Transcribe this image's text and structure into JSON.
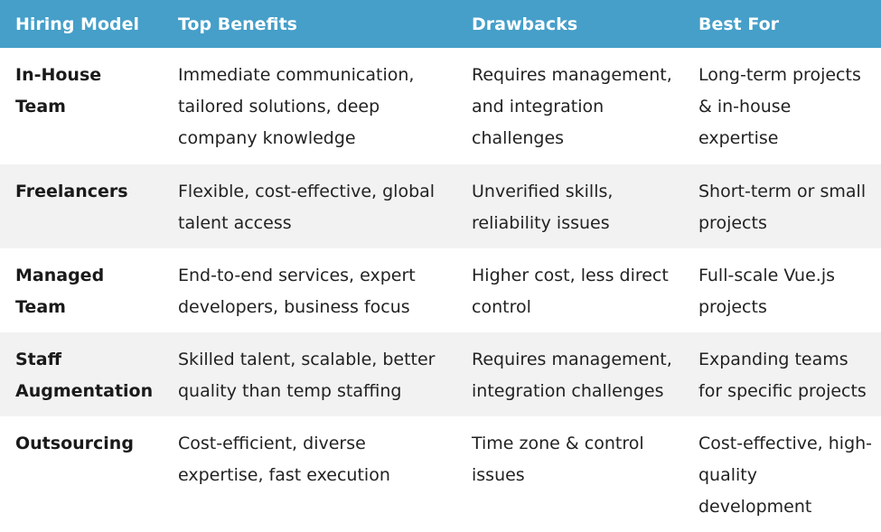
{
  "table": {
    "headers": [
      "Hiring Model",
      "Top Benefits",
      "Drawbacks",
      "Best For"
    ],
    "rows": [
      {
        "model": "In-House Team",
        "benefits": "Immediate communication, tailored solutions, deep company knowledge",
        "drawbacks": "Requires management, and integration challenges",
        "best_for": "Long-term projects & in-house expertise"
      },
      {
        "model": "Freelancers",
        "benefits": "Flexible, cost-effective, global talent access",
        "drawbacks": "Unverified skills, reliability issues",
        "best_for": "Short-term or small projects"
      },
      {
        "model": "Managed Team",
        "benefits": "End-to-end services, expert developers, business focus",
        "drawbacks": "Higher cost, less direct control",
        "best_for": "Full-scale Vue.js projects"
      },
      {
        "model": "Staff Augmentation",
        "benefits": "Skilled talent, scalable, better quality than temp staffing",
        "drawbacks": "Requires management, integration challenges",
        "best_for": "Expanding teams for specific projects"
      },
      {
        "model": "Outsourcing",
        "benefits": "Cost-efficient, diverse expertise, fast execution",
        "drawbacks": "Time zone & control issues",
        "best_for": "Cost-effective, high-quality development"
      }
    ]
  }
}
